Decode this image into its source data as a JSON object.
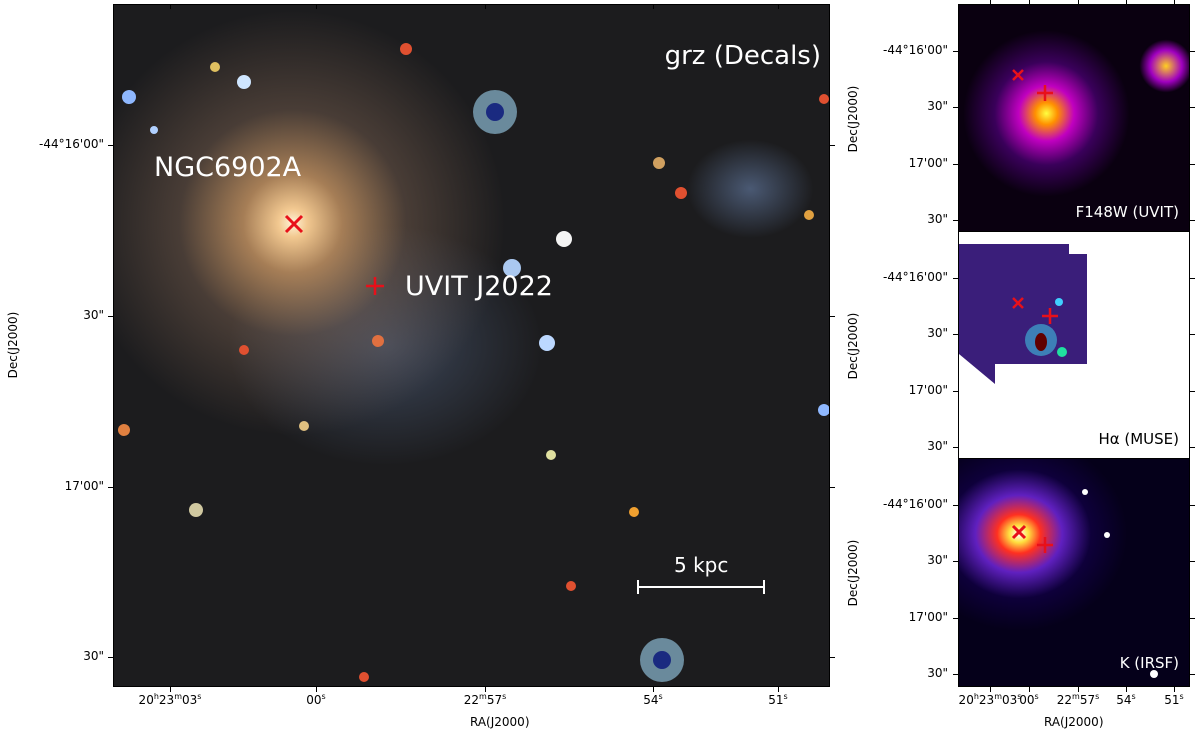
{
  "main_panel": {
    "label": "grz (Decals)",
    "annotations": [
      "NGC6902A",
      "UVIT J2022"
    ],
    "scale_bar": "5 kpc",
    "x_axis_label": "RA(J2000)",
    "y_axis_label": "Dec(J2000)",
    "x_ticks": [
      [
        "20",
        "h",
        "23",
        "m",
        "03",
        "s"
      ],
      [
        "00",
        "s"
      ],
      [
        "22",
        "m",
        "57",
        "s"
      ],
      [
        "54",
        "s"
      ],
      [
        "51",
        "s"
      ]
    ],
    "y_ticks": [
      "-44°16'00\"",
      "30\"",
      "17'00\"",
      "30\""
    ]
  },
  "side_panels": [
    {
      "label": "F148W (UVIT)",
      "y_axis_label": "Dec(J2000)",
      "y_ticks": [
        "-44°16'00\"",
        "30\"",
        "17'00\"",
        "30\""
      ]
    },
    {
      "label": "Hα (MUSE)",
      "y_axis_label": "Dec(J2000)",
      "y_ticks": [
        "-44°16'00\"",
        "30\"",
        "17'00\"",
        "30\""
      ]
    },
    {
      "label": "K (IRSF)",
      "y_axis_label": "Dec(J2000)",
      "y_ticks": [
        "-44°16'00\"",
        "30\"",
        "17'00\"",
        "30\""
      ]
    }
  ],
  "side_x_axis_label": "RA(J2000)",
  "side_x_ticks": [
    [
      "20",
      "h",
      "23",
      "m",
      "03",
      "s"
    ],
    [
      "00",
      "s"
    ],
    [
      "22",
      "m",
      "57",
      "s"
    ],
    [
      "54",
      "s"
    ],
    [
      "51",
      "s"
    ]
  ]
}
